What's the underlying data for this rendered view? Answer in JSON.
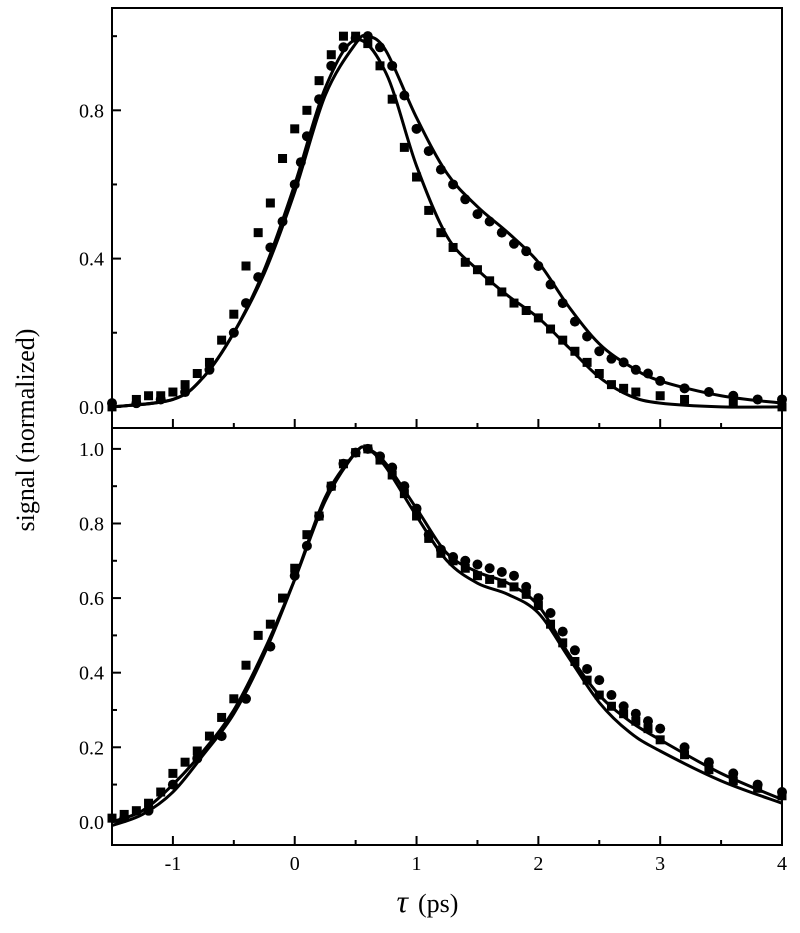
{
  "chart_data": [
    {
      "type": "scatter",
      "panel": "top",
      "xlim": [
        -1.5,
        4
      ],
      "ylim": [
        -0.057,
        1.076
      ],
      "yticks": [
        0.0,
        0.4,
        0.8
      ],
      "ytick_labels": [
        "0.0",
        "0.4",
        "0.8"
      ],
      "grid": false,
      "series": [
        {
          "marker": "circle",
          "x": [
            -1.5,
            -1.3,
            -1.1,
            -0.9,
            -0.7,
            -0.5,
            -0.4,
            -0.3,
            -0.2,
            -0.1,
            0,
            0.05,
            0.1,
            0.2,
            0.3,
            0.4,
            0.5,
            0.6,
            0.7,
            0.8,
            0.9,
            1.0,
            1.1,
            1.2,
            1.3,
            1.4,
            1.5,
            1.6,
            1.7,
            1.8,
            1.9,
            2.0,
            2.1,
            2.2,
            2.3,
            2.4,
            2.5,
            2.6,
            2.7,
            2.8,
            2.9,
            3.0,
            3.2,
            3.4,
            3.6,
            3.8,
            4.0
          ],
          "y": [
            0.01,
            0.01,
            0.02,
            0.04,
            0.1,
            0.2,
            0.28,
            0.35,
            0.43,
            0.5,
            0.6,
            0.66,
            0.73,
            0.83,
            0.92,
            0.97,
            0.995,
            1.0,
            0.97,
            0.92,
            0.84,
            0.75,
            0.69,
            0.64,
            0.6,
            0.56,
            0.52,
            0.5,
            0.47,
            0.44,
            0.42,
            0.38,
            0.33,
            0.28,
            0.23,
            0.19,
            0.15,
            0.13,
            0.12,
            0.1,
            0.09,
            0.07,
            0.05,
            0.04,
            0.03,
            0.02,
            0.02
          ]
        },
        {
          "marker": "square",
          "x": [
            -1.5,
            -1.3,
            -1.2,
            -1.1,
            -1.0,
            -0.9,
            -0.8,
            -0.7,
            -0.6,
            -0.5,
            -0.4,
            -0.3,
            -0.2,
            -0.1,
            0.0,
            0.1,
            0.2,
            0.3,
            0.4,
            0.5,
            0.6,
            0.7,
            0.8,
            0.9,
            1.0,
            1.1,
            1.2,
            1.3,
            1.4,
            1.5,
            1.6,
            1.7,
            1.8,
            1.9,
            2.0,
            2.1,
            2.2,
            2.3,
            2.4,
            2.5,
            2.6,
            2.7,
            2.8,
            3.0,
            3.2,
            3.6,
            4.0
          ],
          "y": [
            0.0,
            0.02,
            0.03,
            0.03,
            0.04,
            0.06,
            0.09,
            0.12,
            0.18,
            0.25,
            0.38,
            0.47,
            0.55,
            0.67,
            0.75,
            0.8,
            0.88,
            0.95,
            1.0,
            1.0,
            0.98,
            0.92,
            0.83,
            0.7,
            0.62,
            0.53,
            0.47,
            0.43,
            0.39,
            0.37,
            0.34,
            0.31,
            0.28,
            0.26,
            0.24,
            0.21,
            0.18,
            0.15,
            0.12,
            0.09,
            0.06,
            0.05,
            0.04,
            0.03,
            0.02,
            0.01,
            0.0
          ]
        },
        {
          "marker": "line",
          "x": [
            -1.5,
            -1.0,
            -0.75,
            -0.5,
            -0.25,
            0,
            0.25,
            0.5,
            0.6,
            0.75,
            1.0,
            1.25,
            1.5,
            1.75,
            2.0,
            2.25,
            2.5,
            2.75,
            3.0,
            3.5,
            4.0
          ],
          "y": [
            0.0,
            0.02,
            0.08,
            0.2,
            0.36,
            0.58,
            0.84,
            0.98,
            1.0,
            0.96,
            0.78,
            0.63,
            0.54,
            0.47,
            0.39,
            0.27,
            0.17,
            0.11,
            0.07,
            0.03,
            0.01
          ]
        },
        {
          "marker": "line",
          "x": [
            -1.5,
            -1.0,
            -0.75,
            -0.5,
            -0.25,
            0,
            0.25,
            0.5,
            0.75,
            1.0,
            1.25,
            1.5,
            1.75,
            2.0,
            2.25,
            2.5,
            2.75,
            3.0,
            3.5,
            4.0
          ],
          "y": [
            0.0,
            0.02,
            0.08,
            0.2,
            0.37,
            0.6,
            0.86,
            0.99,
            0.9,
            0.65,
            0.46,
            0.37,
            0.3,
            0.24,
            0.16,
            0.08,
            0.03,
            0.01,
            0.0,
            0.0
          ]
        }
      ]
    },
    {
      "type": "scatter",
      "panel": "bottom",
      "xlim": [
        -1.5,
        4
      ],
      "ylim": [
        -0.062,
        1.056
      ],
      "yticks": [
        0.0,
        0.2,
        0.4,
        0.6,
        0.8,
        1.0
      ],
      "ytick_labels": [
        "0.0",
        "0.2",
        "0.4",
        "0.6",
        "0.8",
        "1.0"
      ],
      "xticks": [
        -1,
        0,
        1,
        2,
        3,
        4
      ],
      "xtick_labels": [
        "-1",
        "0",
        "1",
        "2",
        "3",
        "4"
      ],
      "grid": false,
      "series": [
        {
          "marker": "circle",
          "x": [
            -1.4,
            -1.2,
            -1.0,
            -0.8,
            -0.6,
            -0.4,
            -0.2,
            0.0,
            0.1,
            0.2,
            0.3,
            0.4,
            0.5,
            0.6,
            0.7,
            0.8,
            0.9,
            1.0,
            1.1,
            1.2,
            1.3,
            1.4,
            1.5,
            1.6,
            1.7,
            1.8,
            1.9,
            2.0,
            2.1,
            2.2,
            2.3,
            2.4,
            2.5,
            2.6,
            2.7,
            2.8,
            2.9,
            3.0,
            3.2,
            3.4,
            3.6,
            3.8,
            4.0
          ],
          "y": [
            0.01,
            0.03,
            0.1,
            0.17,
            0.23,
            0.33,
            0.47,
            0.66,
            0.74,
            0.82,
            0.9,
            0.96,
            0.99,
            1.0,
            0.98,
            0.95,
            0.9,
            0.84,
            0.77,
            0.73,
            0.71,
            0.7,
            0.69,
            0.68,
            0.67,
            0.66,
            0.63,
            0.6,
            0.56,
            0.51,
            0.46,
            0.41,
            0.38,
            0.34,
            0.31,
            0.29,
            0.27,
            0.25,
            0.2,
            0.16,
            0.13,
            0.1,
            0.08
          ]
        },
        {
          "marker": "square",
          "x": [
            -1.5,
            -1.4,
            -1.3,
            -1.2,
            -1.1,
            -1.0,
            -0.9,
            -0.8,
            -0.7,
            -0.6,
            -0.5,
            -0.4,
            -0.3,
            -0.2,
            -0.1,
            0.0,
            0.1,
            0.2,
            0.3,
            0.4,
            0.5,
            0.6,
            0.7,
            0.8,
            0.9,
            1.0,
            1.1,
            1.2,
            1.3,
            1.4,
            1.5,
            1.6,
            1.7,
            1.8,
            1.9,
            2.0,
            2.1,
            2.2,
            2.3,
            2.4,
            2.5,
            2.6,
            2.7,
            2.8,
            2.9,
            3.0,
            3.2,
            3.4,
            3.6,
            3.8,
            4.0
          ],
          "y": [
            0.01,
            0.02,
            0.03,
            0.05,
            0.08,
            0.13,
            0.16,
            0.19,
            0.23,
            0.28,
            0.33,
            0.42,
            0.5,
            0.53,
            0.6,
            0.68,
            0.77,
            0.82,
            0.9,
            0.96,
            0.99,
            1.0,
            0.97,
            0.93,
            0.88,
            0.82,
            0.76,
            0.72,
            0.7,
            0.68,
            0.66,
            0.65,
            0.64,
            0.63,
            0.61,
            0.58,
            0.53,
            0.48,
            0.43,
            0.38,
            0.34,
            0.31,
            0.29,
            0.27,
            0.25,
            0.22,
            0.18,
            0.14,
            0.11,
            0.09,
            0.07
          ]
        },
        {
          "marker": "line",
          "x": [
            -1.5,
            -1.25,
            -1.0,
            -0.75,
            -0.5,
            -0.25,
            0,
            0.25,
            0.5,
            0.6,
            0.75,
            1.0,
            1.25,
            1.5,
            1.75,
            2.0,
            2.25,
            2.5,
            2.75,
            3.0,
            3.5,
            4.0
          ],
          "y": [
            0.0,
            0.03,
            0.1,
            0.19,
            0.3,
            0.46,
            0.65,
            0.86,
            0.99,
            1.0,
            0.96,
            0.84,
            0.72,
            0.67,
            0.64,
            0.58,
            0.45,
            0.34,
            0.27,
            0.22,
            0.13,
            0.06
          ]
        },
        {
          "marker": "line",
          "x": [
            -1.5,
            -1.25,
            -1.0,
            -0.75,
            -0.5,
            -0.25,
            0,
            0.25,
            0.5,
            0.6,
            0.75,
            1.0,
            1.25,
            1.5,
            1.75,
            2.0,
            2.25,
            2.5,
            2.75,
            3.0,
            3.5,
            4.0
          ],
          "y": [
            -0.01,
            0.02,
            0.08,
            0.18,
            0.29,
            0.45,
            0.65,
            0.87,
            0.99,
            1.0,
            0.95,
            0.82,
            0.7,
            0.64,
            0.61,
            0.56,
            0.44,
            0.32,
            0.24,
            0.19,
            0.11,
            0.05
          ]
        }
      ]
    }
  ],
  "axes": {
    "ylabel": "signal (normalized)",
    "xlabel_symbol": "τ",
    "xlabel_unit": "(ps)"
  }
}
